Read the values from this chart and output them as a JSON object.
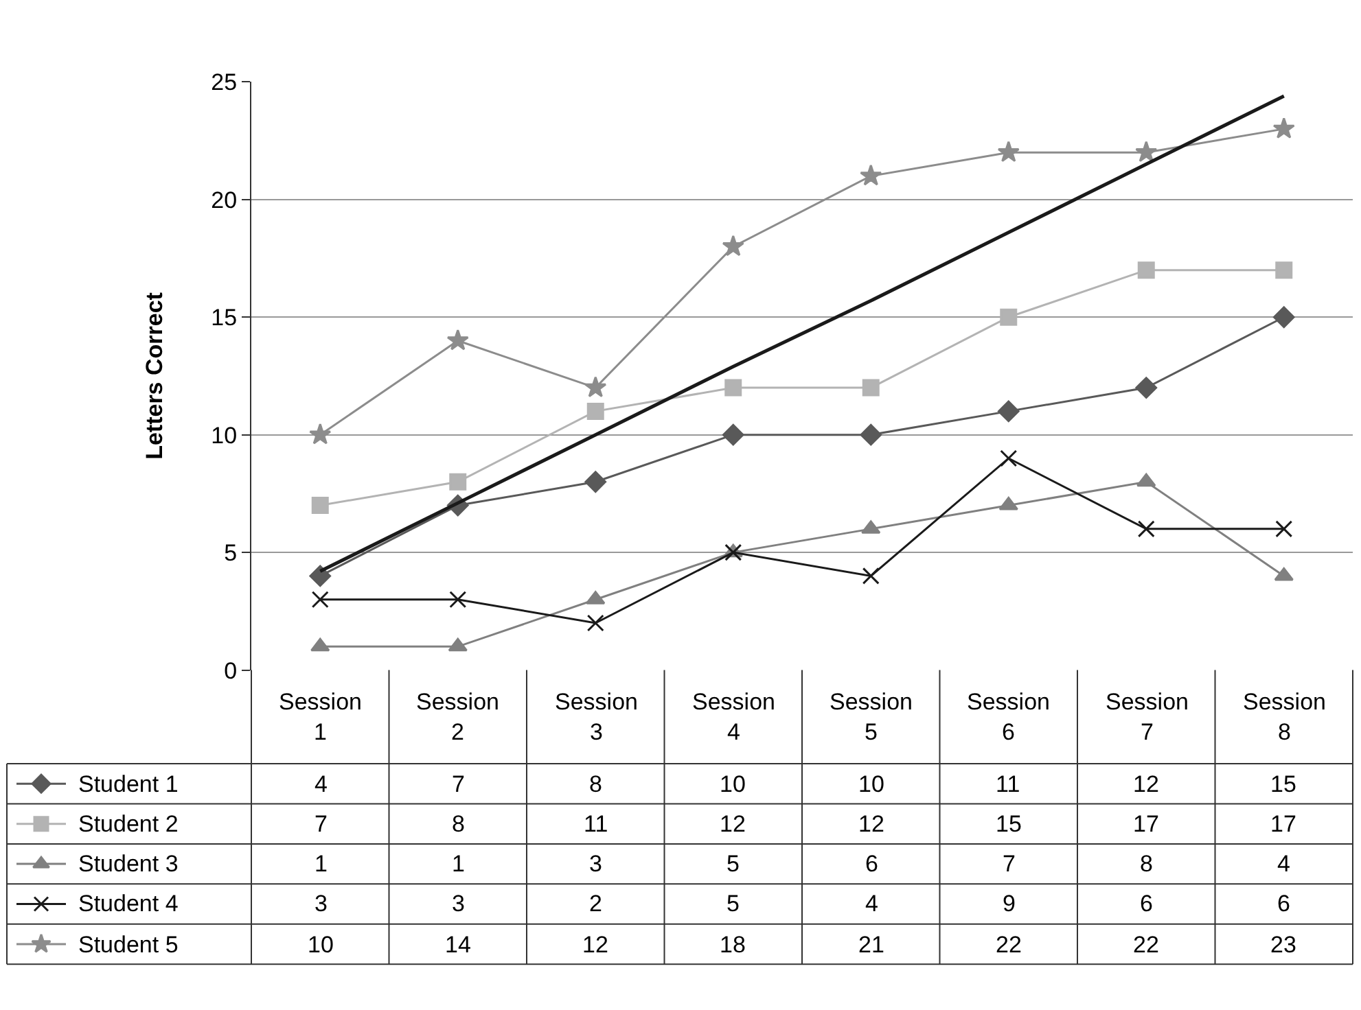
{
  "chart_data": {
    "type": "line",
    "ylabel": "Letters Correct",
    "categories": [
      "Session 1",
      "Session 2",
      "Session 3",
      "Session 4",
      "Session 5",
      "Session 6",
      "Session 7",
      "Session 8"
    ],
    "series": [
      {
        "name": "Student 1",
        "color": "#595959",
        "marker": "diamond",
        "values": [
          4,
          7,
          8,
          10,
          10,
          11,
          12,
          15
        ],
        "value_labels": [
          "4",
          "7",
          "8",
          "10",
          "10",
          "11",
          "12",
          "15"
        ]
      },
      {
        "name": "Student 2",
        "color": "#b3b3b3",
        "marker": "square",
        "values": [
          7,
          8,
          11,
          12,
          12,
          15,
          17,
          17
        ],
        "value_labels": [
          "7",
          "8",
          "11",
          "12",
          "12",
          "15",
          "17",
          "17"
        ]
      },
      {
        "name": "Student 3",
        "color": "#808080",
        "marker": "triangle",
        "values": [
          1,
          1,
          3,
          5,
          6,
          7,
          8,
          4
        ],
        "value_labels": [
          "1",
          "1",
          "3",
          "5",
          "6",
          "7",
          "8",
          "4"
        ]
      },
      {
        "name": "Student 4",
        "color": "#1a1a1a",
        "marker": "cross",
        "values": [
          3,
          3,
          2,
          5,
          4,
          9,
          6,
          6
        ],
        "value_labels": [
          "3",
          "3",
          "2",
          "5",
          "4",
          "9",
          "6",
          "6"
        ]
      },
      {
        "name": "Student 5",
        "color": "#8c8c8c",
        "marker": "star",
        "values": [
          10,
          14,
          12,
          18,
          21,
          22,
          22,
          23
        ],
        "value_labels": [
          "10",
          "14",
          "12",
          "18",
          "21",
          "22",
          "22",
          "23"
        ]
      },
      {
        "type": "line",
        "color": "#1a1a1a",
        "marker": "none",
        "values": [
          4.2,
          7.1,
          10.0,
          12.9,
          15.7,
          18.6,
          21.5,
          24.4
        ]
      }
    ],
    "ylim": [
      0,
      25
    ],
    "yticks": [
      0,
      5,
      10,
      15,
      20,
      25
    ],
    "grid": "y",
    "legend": "left"
  }
}
